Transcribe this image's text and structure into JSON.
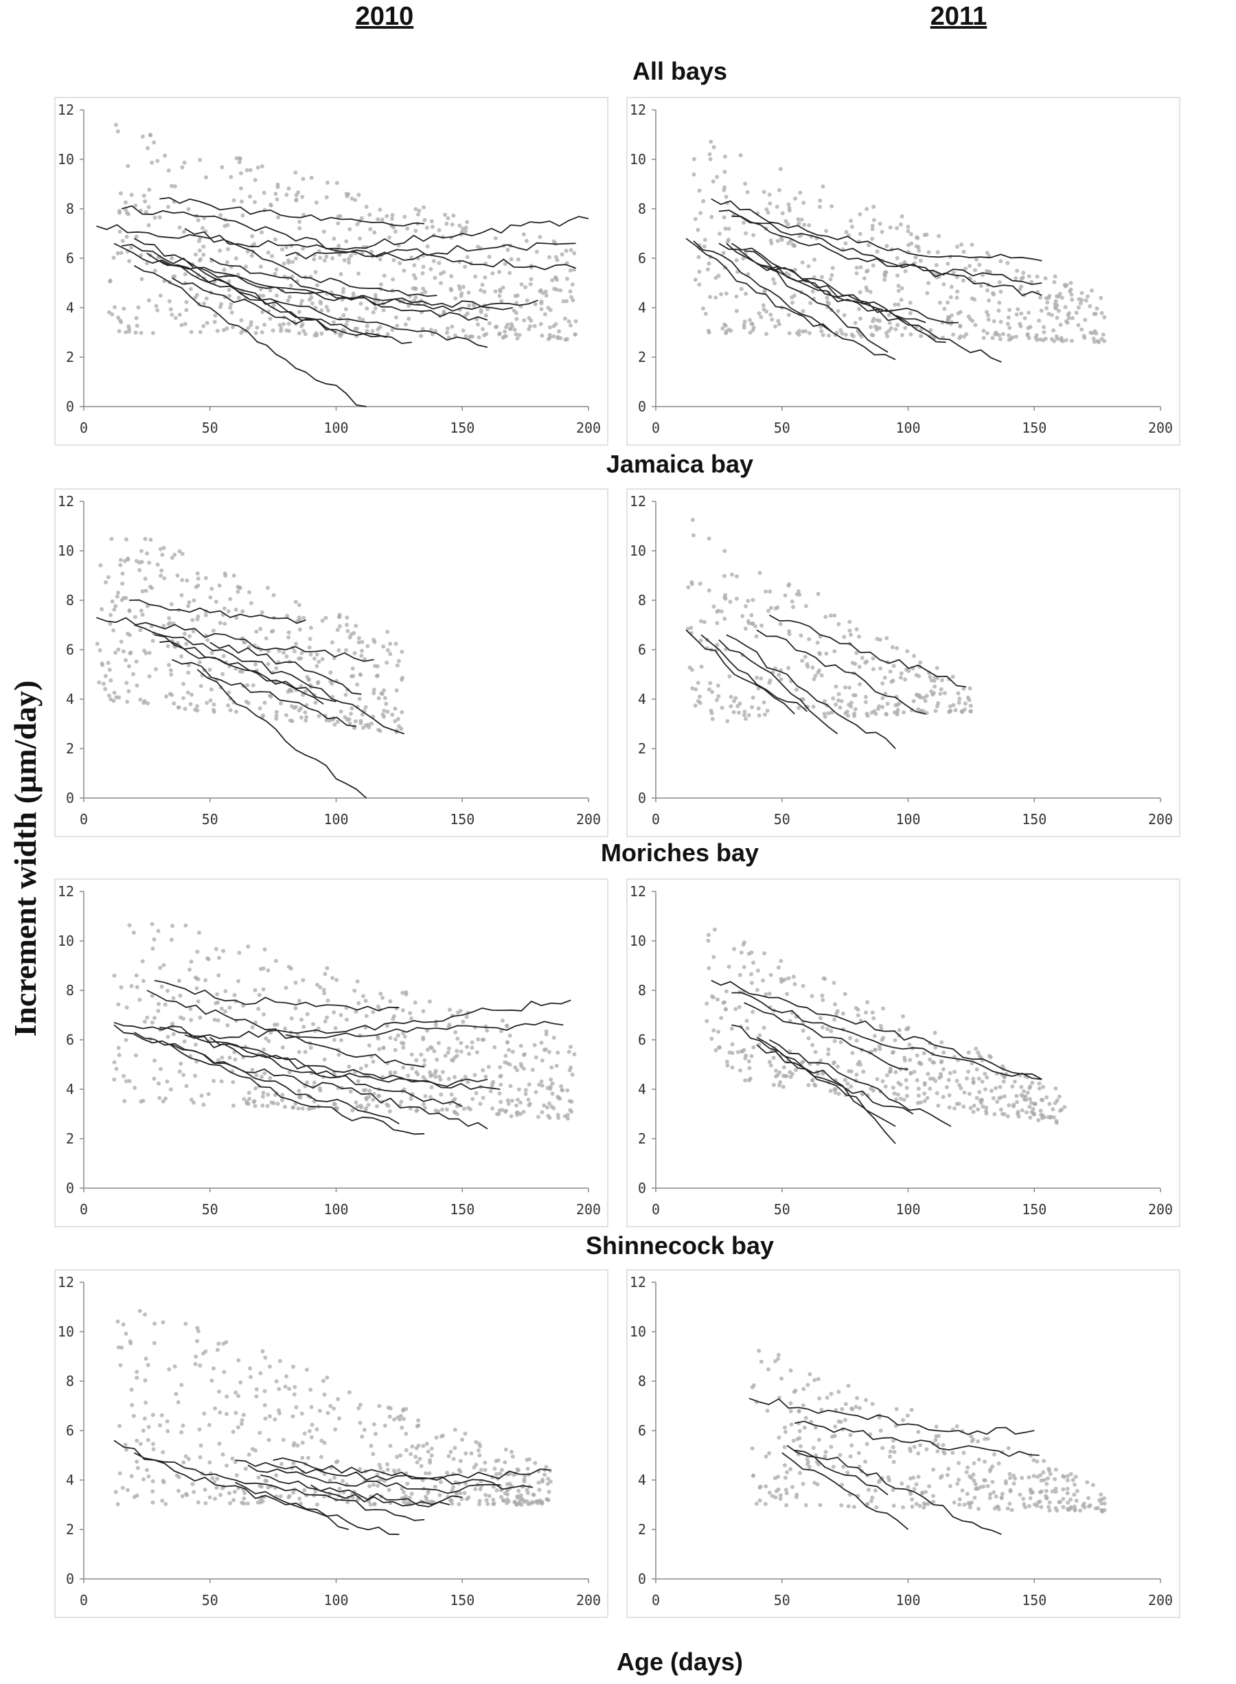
{
  "figure": {
    "column_headers": [
      "2010",
      "2011"
    ],
    "ylabel": "Increment width (µm/day)",
    "xlabel": "Age (days)"
  },
  "style": {
    "point_color": "#a9a9a9",
    "line_color": "#222222"
  },
  "chart_data": [
    {
      "id": "all-2010",
      "type": "scatter",
      "title": "All bays",
      "year": "2010",
      "xlim": [
        0,
        200
      ],
      "ylim": [
        0,
        12
      ],
      "xticks": [
        0,
        50,
        100,
        150,
        200
      ],
      "yticks": [
        0,
        2,
        4,
        6,
        8,
        10,
        12
      ],
      "cloud": {
        "x_range": [
          10,
          195
        ],
        "y_start": [
          3.0,
          11.5
        ],
        "y_end": [
          2.7,
          6.5
        ],
        "n": 650,
        "seed": 11
      },
      "series": [
        {
          "x": [
            5,
            50,
            100,
            150,
            195
          ],
          "y": [
            7.3,
            6.8,
            6.3,
            5.9,
            5.6
          ]
        },
        {
          "x": [
            15,
            60,
            100,
            150,
            200
          ],
          "y": [
            8.0,
            7.5,
            6.4,
            7.0,
            7.6
          ]
        },
        {
          "x": [
            80,
            120,
            160,
            195
          ],
          "y": [
            6.1,
            6.2,
            6.4,
            6.6
          ]
        },
        {
          "x": [
            30,
            70,
            110,
            135
          ],
          "y": [
            8.4,
            7.9,
            7.5,
            7.4
          ]
        },
        {
          "x": [
            20,
            50,
            80,
            112
          ],
          "y": [
            5.7,
            4.0,
            1.9,
            0.0
          ]
        },
        {
          "x": [
            12,
            50,
            90,
            130
          ],
          "y": [
            6.6,
            5.0,
            3.5,
            2.6
          ]
        },
        {
          "x": [
            15,
            60,
            100,
            150,
            180
          ],
          "y": [
            6.5,
            5.3,
            4.4,
            4.0,
            4.3
          ]
        },
        {
          "x": [
            25,
            70,
            120,
            160
          ],
          "y": [
            6.2,
            4.3,
            3.3,
            2.4
          ]
        },
        {
          "x": [
            30,
            80,
            130,
            170
          ],
          "y": [
            5.9,
            4.6,
            4.2,
            4.0
          ]
        },
        {
          "x": [
            20,
            60,
            100
          ],
          "y": [
            6.8,
            4.8,
            3.0
          ]
        },
        {
          "x": [
            40,
            90,
            140
          ],
          "y": [
            7.2,
            5.2,
            4.5
          ]
        },
        {
          "x": [
            35,
            80,
            120
          ],
          "y": [
            5.2,
            3.6,
            2.8
          ]
        },
        {
          "x": [
            50,
            90,
            130,
            160
          ],
          "y": [
            6.0,
            4.8,
            3.9,
            3.5
          ]
        }
      ]
    },
    {
      "id": "all-2011",
      "type": "scatter",
      "title": "",
      "year": "2011",
      "xlim": [
        0,
        200
      ],
      "ylim": [
        0,
        12
      ],
      "xticks": [
        0,
        50,
        100,
        150,
        200
      ],
      "yticks": [
        0,
        2,
        4,
        6,
        8,
        10,
        12
      ],
      "cloud": {
        "x_range": [
          15,
          178
        ],
        "y_start": [
          3.0,
          11.0
        ],
        "y_end": [
          2.6,
          4.5
        ],
        "n": 520,
        "seed": 23
      },
      "series": [
        {
          "x": [
            22,
            60,
            100,
            153
          ],
          "y": [
            8.4,
            7.1,
            6.2,
            5.9
          ]
        },
        {
          "x": [
            25,
            70,
            110,
            153
          ],
          "y": [
            7.9,
            6.5,
            5.5,
            5.0
          ]
        },
        {
          "x": [
            30,
            80,
            130,
            153
          ],
          "y": [
            7.7,
            6.0,
            5.0,
            4.5
          ]
        },
        {
          "x": [
            25,
            60,
            100,
            137
          ],
          "y": [
            6.6,
            4.9,
            3.3,
            1.8
          ]
        },
        {
          "x": [
            12,
            40,
            70,
            95
          ],
          "y": [
            6.8,
            4.6,
            3.0,
            1.9
          ]
        },
        {
          "x": [
            15,
            45,
            70
          ],
          "y": [
            6.7,
            4.7,
            3.0
          ]
        },
        {
          "x": [
            28,
            60,
            92
          ],
          "y": [
            6.6,
            4.5,
            2.2
          ]
        },
        {
          "x": [
            35,
            75,
            120
          ],
          "y": [
            6.3,
            4.3,
            3.4
          ]
        },
        {
          "x": [
            30,
            70,
            107
          ],
          "y": [
            6.6,
            4.8,
            3.4
          ]
        },
        {
          "x": [
            40,
            80,
            115
          ],
          "y": [
            5.8,
            4.3,
            2.6
          ]
        }
      ]
    },
    {
      "id": "jamaica-2010",
      "type": "scatter",
      "title": "Jamaica bay",
      "year": "2010",
      "xlim": [
        0,
        200
      ],
      "ylim": [
        0,
        12
      ],
      "xticks": [
        0,
        50,
        100,
        150,
        200
      ],
      "yticks": [
        0,
        2,
        4,
        6,
        8,
        10,
        12
      ],
      "cloud": {
        "x_range": [
          5,
          127
        ],
        "y_start": [
          4.0,
          11.3
        ],
        "y_end": [
          2.6,
          6.5
        ],
        "n": 420,
        "seed": 37
      },
      "series": [
        {
          "x": [
            5,
            40,
            80,
            115
          ],
          "y": [
            7.3,
            6.8,
            6.0,
            5.6
          ]
        },
        {
          "x": [
            18,
            50,
            70,
            88
          ],
          "y": [
            8.0,
            7.5,
            7.4,
            7.2
          ]
        },
        {
          "x": [
            20,
            55,
            90,
            127
          ],
          "y": [
            7.0,
            6.0,
            4.5,
            2.6
          ]
        },
        {
          "x": [
            28,
            60,
            100
          ],
          "y": [
            6.6,
            5.3,
            3.9
          ]
        },
        {
          "x": [
            35,
            70,
            108
          ],
          "y": [
            5.6,
            4.3,
            2.9
          ]
        },
        {
          "x": [
            30,
            65,
            95
          ],
          "y": [
            6.3,
            5.2,
            3.8
          ]
        },
        {
          "x": [
            45,
            80,
            112
          ],
          "y": [
            5.2,
            2.3,
            0.0
          ]
        },
        {
          "x": [
            50,
            80,
            110
          ],
          "y": [
            6.3,
            5.5,
            4.2
          ]
        }
      ]
    },
    {
      "id": "jamaica-2011",
      "type": "scatter",
      "title": "",
      "year": "2011",
      "xlim": [
        0,
        200
      ],
      "ylim": [
        0,
        12
      ],
      "xticks": [
        0,
        50,
        100,
        150,
        200
      ],
      "yticks": [
        0,
        2,
        4,
        6,
        8,
        10,
        12
      ],
      "cloud": {
        "x_range": [
          12,
          125
        ],
        "y_start": [
          3.0,
          11.5
        ],
        "y_end": [
          3.5,
          4.5
        ],
        "n": 300,
        "seed": 53
      },
      "series": [
        {
          "x": [
            45,
            85,
            123
          ],
          "y": [
            7.4,
            5.9,
            4.5
          ]
        },
        {
          "x": [
            40,
            75,
            107
          ],
          "y": [
            6.8,
            5.1,
            3.4
          ]
        },
        {
          "x": [
            28,
            60,
            95
          ],
          "y": [
            6.6,
            4.3,
            2.0
          ]
        },
        {
          "x": [
            25,
            50,
            72
          ],
          "y": [
            6.4,
            4.6,
            2.6
          ]
        },
        {
          "x": [
            12,
            35,
            55
          ],
          "y": [
            6.8,
            4.8,
            3.4
          ]
        },
        {
          "x": [
            18,
            40,
            60
          ],
          "y": [
            6.6,
            4.6,
            3.5
          ]
        }
      ]
    },
    {
      "id": "moriches-2010",
      "type": "scatter",
      "title": "Moriches bay",
      "year": "2010",
      "xlim": [
        0,
        200
      ],
      "ylim": [
        0,
        12
      ],
      "xticks": [
        0,
        50,
        100,
        150,
        200
      ],
      "yticks": [
        0,
        2,
        4,
        6,
        8,
        10,
        12
      ],
      "cloud": {
        "x_range": [
          12,
          195
        ],
        "y_start": [
          3.5,
          11.5
        ],
        "y_end": [
          2.8,
          6.0
        ],
        "n": 560,
        "seed": 71
      },
      "series": [
        {
          "x": [
            12,
            50,
            100,
            150,
            193
          ],
          "y": [
            6.7,
            6.2,
            6.3,
            7.0,
            7.6
          ]
        },
        {
          "x": [
            80,
            120,
            160,
            190
          ],
          "y": [
            6.2,
            6.3,
            6.5,
            6.6
          ]
        },
        {
          "x": [
            28,
            60,
            100,
            125
          ],
          "y": [
            8.4,
            7.6,
            7.4,
            7.3
          ]
        },
        {
          "x": [
            25,
            60,
            100,
            135
          ],
          "y": [
            8.0,
            6.8,
            5.6,
            4.9
          ]
        },
        {
          "x": [
            12,
            50,
            90,
            135
          ],
          "y": [
            6.6,
            5.0,
            3.3,
            2.2
          ]
        },
        {
          "x": [
            20,
            60,
            110,
            160
          ],
          "y": [
            6.3,
            4.9,
            3.8,
            2.4
          ]
        },
        {
          "x": [
            30,
            80,
            130,
            165
          ],
          "y": [
            6.5,
            5.2,
            4.3,
            4.0
          ]
        },
        {
          "x": [
            40,
            90,
            140,
            160
          ],
          "y": [
            6.2,
            4.7,
            4.2,
            4.4
          ]
        },
        {
          "x": [
            35,
            80,
            125
          ],
          "y": [
            5.8,
            4.1,
            2.6
          ]
        },
        {
          "x": [
            50,
            100,
            150
          ],
          "y": [
            6.1,
            4.5,
            3.3
          ]
        }
      ]
    },
    {
      "id": "moriches-2011",
      "type": "scatter",
      "title": "",
      "year": "2011",
      "xlim": [
        0,
        200
      ],
      "ylim": [
        0,
        12
      ],
      "xticks": [
        0,
        50,
        100,
        150,
        200
      ],
      "yticks": [
        0,
        2,
        4,
        6,
        8,
        10,
        12
      ],
      "cloud": {
        "x_range": [
          20,
          162
        ],
        "y_start": [
          4.5,
          10.7
        ],
        "y_end": [
          2.6,
          4.0
        ],
        "n": 420,
        "seed": 89
      },
      "series": [
        {
          "x": [
            22,
            60,
            110,
            153
          ],
          "y": [
            8.4,
            7.3,
            5.8,
            4.4
          ]
        },
        {
          "x": [
            30,
            70,
            110,
            153
          ],
          "y": [
            7.9,
            6.5,
            5.4,
            4.4
          ]
        },
        {
          "x": [
            35,
            70,
            100
          ],
          "y": [
            7.5,
            6.1,
            4.8
          ]
        },
        {
          "x": [
            30,
            60,
            95
          ],
          "y": [
            6.6,
            4.8,
            2.5
          ]
        },
        {
          "x": [
            40,
            70,
            95
          ],
          "y": [
            6.1,
            4.4,
            1.8
          ]
        },
        {
          "x": [
            45,
            80,
            117
          ],
          "y": [
            6.0,
            4.3,
            2.5
          ]
        },
        {
          "x": [
            40,
            70,
            102
          ],
          "y": [
            5.8,
            4.3,
            3.0
          ]
        }
      ]
    },
    {
      "id": "shinnecock-2010",
      "type": "scatter",
      "title": "Shinnecock bay",
      "year": "2010",
      "xlim": [
        0,
        200
      ],
      "ylim": [
        0,
        12
      ],
      "xticks": [
        0,
        50,
        100,
        150,
        200
      ],
      "yticks": [
        0,
        2,
        4,
        6,
        8,
        10,
        12
      ],
      "cloud": {
        "x_range": [
          12,
          185
        ],
        "y_start": [
          3.0,
          11.7
        ],
        "y_end": [
          3.0,
          4.5
        ],
        "n": 520,
        "seed": 97
      },
      "series": [
        {
          "x": [
            12,
            40,
            80,
            125
          ],
          "y": [
            5.6,
            4.2,
            3.0,
            1.8
          ]
        },
        {
          "x": [
            20,
            60,
            100,
            135
          ],
          "y": [
            5.1,
            4.0,
            3.2,
            2.4
          ]
        },
        {
          "x": [
            60,
            100,
            140,
            185
          ],
          "y": [
            4.8,
            4.2,
            4.0,
            4.4
          ]
        },
        {
          "x": [
            65,
            100,
            140,
            165
          ],
          "y": [
            4.6,
            3.9,
            3.6,
            3.8
          ]
        },
        {
          "x": [
            70,
            100,
            130,
            150
          ],
          "y": [
            4.2,
            3.4,
            3.0,
            3.3
          ]
        },
        {
          "x": [
            60,
            80,
            105
          ],
          "y": [
            3.9,
            3.1,
            2.0
          ]
        },
        {
          "x": [
            75,
            110,
            150,
            178
          ],
          "y": [
            4.8,
            4.3,
            3.9,
            3.7
          ]
        },
        {
          "x": [
            90,
            120,
            145
          ],
          "y": [
            3.8,
            3.2,
            3.0
          ]
        }
      ]
    },
    {
      "id": "shinnecock-2011",
      "type": "scatter",
      "title": "",
      "year": "2011",
      "xlim": [
        0,
        200
      ],
      "ylim": [
        0,
        12
      ],
      "xticks": [
        0,
        50,
        100,
        150,
        200
      ],
      "yticks": [
        0,
        2,
        4,
        6,
        8,
        10,
        12
      ],
      "cloud": {
        "x_range": [
          38,
          178
        ],
        "y_start": [
          3.0,
          9.5
        ],
        "y_end": [
          2.7,
          3.8
        ],
        "n": 380,
        "seed": 113
      },
      "series": [
        {
          "x": [
            37,
            80,
            120,
            150
          ],
          "y": [
            7.3,
            6.6,
            6.0,
            6.0
          ]
        },
        {
          "x": [
            55,
            90,
            120,
            152
          ],
          "y": [
            6.3,
            5.7,
            5.3,
            5.0
          ]
        },
        {
          "x": [
            52,
            80,
            110,
            137
          ],
          "y": [
            5.4,
            4.5,
            3.0,
            1.8
          ]
        },
        {
          "x": [
            50,
            75,
            100
          ],
          "y": [
            5.1,
            3.6,
            2.0
          ]
        },
        {
          "x": [
            55,
            75,
            92
          ],
          "y": [
            5.2,
            4.2,
            3.4
          ]
        }
      ]
    }
  ]
}
